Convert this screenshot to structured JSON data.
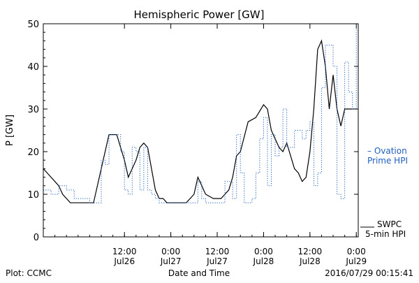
{
  "chart_data": {
    "type": "line",
    "title": "Hemispheric Power [GW]",
    "ylabel": "P [GW]",
    "xlabel": "Date and Time",
    "ylim": [
      0,
      50
    ],
    "yticks": [
      0,
      10,
      20,
      30,
      40,
      50
    ],
    "xlim": [
      "2016-07-25T15:00",
      "2016-07-29T00:30"
    ],
    "xticks": [
      {
        "t": "2016-07-26T12:00",
        "top": "12:00",
        "bottom": "Jul26"
      },
      {
        "t": "2016-07-27T00:00",
        "top": "0:00",
        "bottom": "Jul27"
      },
      {
        "t": "2016-07-27T12:00",
        "top": "12:00",
        "bottom": "Jul27"
      },
      {
        "t": "2016-07-28T00:00",
        "top": "0:00",
        "bottom": "Jul28"
      },
      {
        "t": "2016-07-28T12:00",
        "top": "12:00",
        "bottom": "Jul28"
      },
      {
        "t": "2016-07-29T00:00",
        "top": "0:00",
        "bottom": "Jul29"
      }
    ],
    "series": [
      {
        "name": "SWPC 5-min HPI",
        "color": "#000000",
        "style": "solid",
        "x": [
          "2016-07-25T15:00",
          "2016-07-25T16:00",
          "2016-07-25T17:00",
          "2016-07-25T18:00",
          "2016-07-25T19:00",
          "2016-07-25T20:00",
          "2016-07-25T22:00",
          "2016-07-26T00:00",
          "2016-07-26T02:00",
          "2016-07-26T04:00",
          "2016-07-26T06:00",
          "2016-07-26T08:00",
          "2016-07-26T10:00",
          "2016-07-26T12:00",
          "2016-07-26T13:00",
          "2016-07-26T14:00",
          "2016-07-26T15:00",
          "2016-07-26T16:00",
          "2016-07-26T17:00",
          "2016-07-26T18:00",
          "2016-07-26T19:00",
          "2016-07-26T20:00",
          "2016-07-26T21:00",
          "2016-07-26T22:00",
          "2016-07-26T23:00",
          "2016-07-27T00:00",
          "2016-07-27T01:00",
          "2016-07-27T02:00",
          "2016-07-27T03:00",
          "2016-07-27T04:00",
          "2016-07-27T05:00",
          "2016-07-27T06:00",
          "2016-07-27T07:00",
          "2016-07-27T09:00",
          "2016-07-27T11:00",
          "2016-07-27T12:00",
          "2016-07-27T13:00",
          "2016-07-27T14:00",
          "2016-07-27T15:00",
          "2016-07-27T16:00",
          "2016-07-27T17:00",
          "2016-07-27T18:00",
          "2016-07-27T20:00",
          "2016-07-27T22:00",
          "2016-07-28T00:00",
          "2016-07-28T01:00",
          "2016-07-28T02:00",
          "2016-07-28T03:00",
          "2016-07-28T04:00",
          "2016-07-28T05:00",
          "2016-07-28T06:00",
          "2016-07-28T07:00",
          "2016-07-28T08:00",
          "2016-07-28T09:00",
          "2016-07-28T10:00",
          "2016-07-28T11:00",
          "2016-07-28T12:00",
          "2016-07-28T13:00",
          "2016-07-28T14:00",
          "2016-07-28T15:00",
          "2016-07-28T16:00",
          "2016-07-28T17:00",
          "2016-07-28T18:00",
          "2016-07-28T19:00",
          "2016-07-28T20:00",
          "2016-07-28T21:00",
          "2016-07-28T22:00",
          "2016-07-28T23:00",
          "2016-07-28T23:30",
          "2016-07-29T00:00"
        ],
        "values": [
          16,
          15,
          14,
          13,
          12,
          10,
          8,
          8,
          8,
          8,
          16,
          24,
          24,
          18,
          14,
          16,
          18,
          21,
          22,
          21,
          16,
          11,
          9,
          9,
          8,
          8,
          8,
          8,
          8,
          8,
          9,
          10,
          14,
          10,
          9,
          9,
          9,
          10,
          11,
          14,
          19,
          20,
          27,
          28,
          31,
          30,
          25,
          23,
          21,
          20,
          22,
          19,
          16,
          15,
          13,
          14,
          20,
          30,
          44,
          46,
          40,
          30,
          38,
          30,
          26,
          30,
          30,
          30,
          30,
          30
        ],
        "note": "values approximate"
      },
      {
        "name": "Ovation Prime HPI",
        "color": "#1f5fbf",
        "style": "dotted-step",
        "x": [
          "2016-07-25T15:00",
          "2016-07-25T17:00",
          "2016-07-25T19:00",
          "2016-07-25T21:00",
          "2016-07-25T23:00",
          "2016-07-26T03:00",
          "2016-07-26T05:00",
          "2016-07-26T06:00",
          "2016-07-26T07:00",
          "2016-07-26T08:00",
          "2016-07-26T09:00",
          "2016-07-26T10:00",
          "2016-07-26T11:00",
          "2016-07-26T12:00",
          "2016-07-26T13:00",
          "2016-07-26T14:00",
          "2016-07-26T15:00",
          "2016-07-26T16:00",
          "2016-07-26T17:00",
          "2016-07-26T18:00",
          "2016-07-26T19:00",
          "2016-07-26T20:00",
          "2016-07-26T21:00",
          "2016-07-26T22:00",
          "2016-07-26T23:00",
          "2016-07-27T05:00",
          "2016-07-27T07:00",
          "2016-07-27T08:00",
          "2016-07-27T09:00",
          "2016-07-27T10:00",
          "2016-07-27T11:00",
          "2016-07-27T12:00",
          "2016-07-27T14:00",
          "2016-07-27T16:00",
          "2016-07-27T17:00",
          "2016-07-27T18:00",
          "2016-07-27T19:00",
          "2016-07-27T20:00",
          "2016-07-27T21:00",
          "2016-07-27T22:00",
          "2016-07-27T23:00",
          "2016-07-28T00:00",
          "2016-07-28T01:00",
          "2016-07-28T02:00",
          "2016-07-28T03:00",
          "2016-07-28T04:00",
          "2016-07-28T05:00",
          "2016-07-28T06:00",
          "2016-07-28T07:00",
          "2016-07-28T08:00",
          "2016-07-28T09:00",
          "2016-07-28T10:00",
          "2016-07-28T11:00",
          "2016-07-28T12:00",
          "2016-07-28T13:00",
          "2016-07-28T14:00",
          "2016-07-28T15:00",
          "2016-07-28T16:00",
          "2016-07-28T17:00",
          "2016-07-28T18:00",
          "2016-07-28T19:00",
          "2016-07-28T20:00",
          "2016-07-28T21:00",
          "2016-07-28T22:00",
          "2016-07-28T23:00",
          "2016-07-29T00:00"
        ],
        "values": [
          11,
          10,
          12,
          11,
          9,
          8,
          8,
          18,
          17,
          24,
          24,
          24,
          20,
          11,
          10,
          21,
          20,
          11,
          21,
          11,
          10,
          9,
          8,
          8,
          8,
          8,
          13,
          9,
          8,
          8,
          8,
          8,
          13,
          9,
          24,
          15,
          8,
          8,
          9,
          15,
          23,
          28,
          12,
          24,
          19,
          21,
          30,
          21,
          21,
          25,
          25,
          23,
          25,
          27,
          12,
          15,
          35,
          45,
          45,
          40,
          10,
          9,
          41,
          34,
          30,
          49
        ]
      }
    ],
    "legend": {
      "position": "right",
      "items": [
        {
          "label": "– Ovation",
          "label2": "Prime HPI",
          "color": "#1f5fbf"
        },
        {
          "label": "SWPC",
          "label2": "5-min HPI",
          "color": "#000000"
        }
      ]
    }
  },
  "footer": {
    "left": "Plot: CCMC",
    "center": "Date and Time",
    "right": "2016/07/29 00:15:41"
  }
}
